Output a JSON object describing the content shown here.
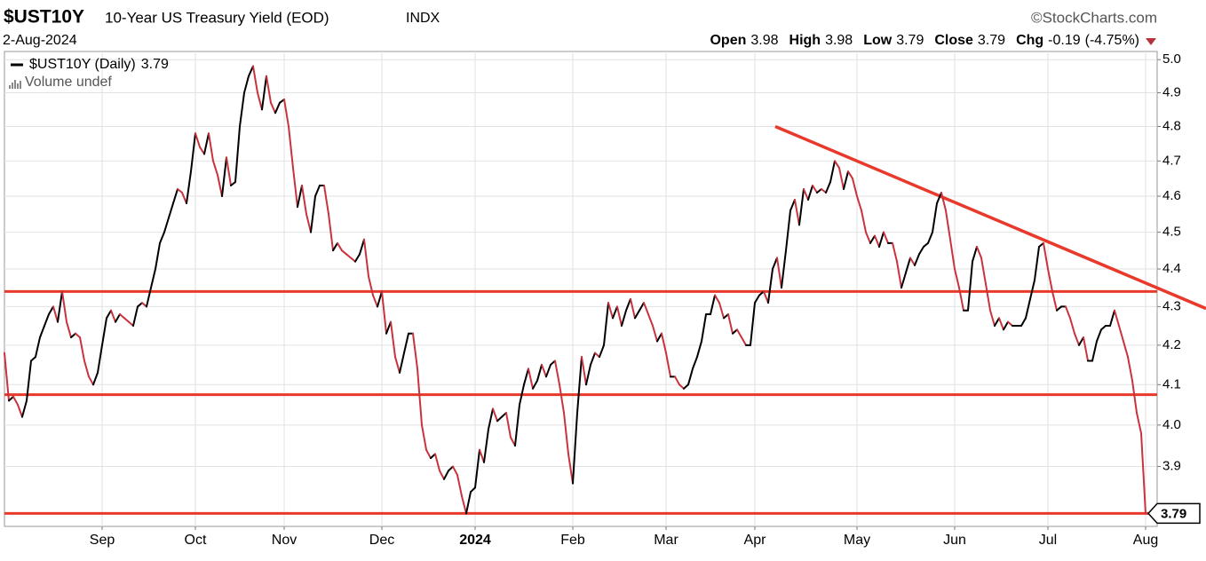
{
  "chart_data": {
    "type": "line",
    "title": "$UST10Y",
    "subtitle": "10-Year US Treasury Yield (EOD)",
    "exchange": "INDX",
    "source": "©StockCharts.com",
    "date": "2-Aug-2024",
    "stats": [
      {
        "label": "Open",
        "value": 3.98
      },
      {
        "label": "High",
        "value": 3.98
      },
      {
        "label": "Low",
        "value": 3.79
      },
      {
        "label": "Close",
        "value": 3.79
      },
      {
        "label": "Chg",
        "value": -0.19,
        "percent_label": "(-4.75%)"
      }
    ],
    "volume_label": "Volume undef",
    "categories": [
      null,
      null,
      null,
      null,
      null,
      null,
      null,
      null,
      null,
      null,
      null,
      null,
      null,
      null,
      null,
      null,
      null,
      null,
      null,
      null,
      null,
      null,
      "Sep",
      null,
      null,
      null,
      null,
      null,
      null,
      null,
      null,
      null,
      null,
      null,
      null,
      null,
      null,
      null,
      null,
      null,
      null,
      null,
      null,
      "Oct",
      null,
      null,
      null,
      null,
      null,
      null,
      null,
      null,
      null,
      null,
      null,
      null,
      null,
      null,
      null,
      null,
      null,
      null,
      null,
      "Nov",
      null,
      null,
      null,
      null,
      null,
      null,
      null,
      null,
      null,
      null,
      null,
      null,
      null,
      null,
      null,
      null,
      null,
      null,
      null,
      null,
      null,
      "Dec",
      null,
      null,
      null,
      null,
      null,
      null,
      null,
      null,
      null,
      null,
      null,
      null,
      null,
      null,
      null,
      null,
      null,
      null,
      null,
      null,
      "2024",
      null,
      null,
      null,
      null,
      null,
      null,
      null,
      null,
      null,
      null,
      null,
      null,
      null,
      null,
      null,
      null,
      null,
      null,
      null,
      null,
      null,
      "Feb",
      null,
      null,
      null,
      null,
      null,
      null,
      null,
      null,
      null,
      null,
      null,
      null,
      null,
      null,
      null,
      null,
      null,
      null,
      null,
      null,
      "Mar",
      null,
      null,
      null,
      null,
      null,
      null,
      null,
      null,
      null,
      null,
      null,
      null,
      null,
      null,
      null,
      null,
      null,
      null,
      null,
      "Apr",
      null,
      null,
      null,
      null,
      null,
      null,
      null,
      null,
      null,
      null,
      null,
      null,
      null,
      null,
      null,
      null,
      null,
      null,
      null,
      null,
      null,
      null,
      "May",
      null,
      null,
      null,
      null,
      null,
      null,
      null,
      null,
      null,
      null,
      null,
      null,
      null,
      null,
      null,
      null,
      null,
      null,
      null,
      null,
      null,
      "Jun",
      null,
      null,
      null,
      null,
      null,
      null,
      null,
      null,
      null,
      null,
      null,
      null,
      null,
      null,
      null,
      null,
      null,
      null,
      null,
      null,
      "Jul",
      null,
      null,
      null,
      null,
      null,
      null,
      null,
      null,
      null,
      null,
      null,
      null,
      null,
      null,
      null,
      null,
      null,
      null,
      null,
      null,
      null,
      "Aug"
    ],
    "series": [
      {
        "name": "$UST10Y (Daily)",
        "up_color": "#000000",
        "down_color": "#c9333d",
        "values": [
          4.18,
          4.06,
          4.07,
          4.05,
          4.02,
          4.06,
          4.16,
          4.17,
          4.22,
          4.25,
          4.28,
          4.3,
          4.26,
          4.34,
          4.26,
          4.22,
          4.23,
          4.22,
          4.16,
          4.12,
          4.1,
          4.13,
          4.2,
          4.27,
          4.29,
          4.26,
          4.28,
          4.27,
          4.26,
          4.25,
          4.3,
          4.31,
          4.3,
          4.35,
          4.4,
          4.47,
          4.5,
          4.54,
          4.58,
          4.62,
          4.61,
          4.58,
          4.67,
          4.78,
          4.74,
          4.72,
          4.78,
          4.7,
          4.66,
          4.6,
          4.71,
          4.63,
          4.64,
          4.8,
          4.9,
          4.95,
          4.98,
          4.9,
          4.85,
          4.95,
          4.87,
          4.84,
          4.87,
          4.88,
          4.8,
          4.68,
          4.57,
          4.63,
          4.55,
          4.5,
          4.6,
          4.63,
          4.63,
          4.55,
          4.45,
          4.47,
          4.45,
          4.44,
          4.43,
          4.42,
          4.44,
          4.48,
          4.38,
          4.33,
          4.3,
          4.34,
          4.23,
          4.26,
          4.17,
          4.13,
          4.18,
          4.23,
          4.23,
          4.14,
          4.0,
          3.94,
          3.92,
          3.93,
          3.89,
          3.87,
          3.89,
          3.9,
          3.88,
          3.83,
          3.79,
          3.84,
          3.85,
          3.94,
          3.91,
          3.99,
          4.04,
          4.01,
          4.02,
          4.03,
          3.97,
          3.95,
          4.05,
          4.1,
          4.14,
          4.09,
          4.11,
          4.15,
          4.12,
          4.15,
          4.16,
          4.1,
          4.03,
          3.93,
          3.86,
          4.03,
          4.17,
          4.1,
          4.15,
          4.18,
          4.17,
          4.2,
          4.31,
          4.27,
          4.3,
          4.25,
          4.29,
          4.32,
          4.27,
          4.29,
          4.31,
          4.28,
          4.25,
          4.21,
          4.23,
          4.18,
          4.12,
          4.12,
          4.1,
          4.09,
          4.1,
          4.14,
          4.17,
          4.21,
          4.28,
          4.28,
          4.33,
          4.31,
          4.27,
          4.28,
          4.23,
          4.24,
          4.22,
          4.2,
          4.2,
          4.31,
          4.33,
          4.34,
          4.31,
          4.4,
          4.43,
          4.35,
          4.45,
          4.56,
          4.59,
          4.52,
          4.62,
          4.59,
          4.63,
          4.61,
          4.62,
          4.61,
          4.64,
          4.7,
          4.68,
          4.62,
          4.67,
          4.65,
          4.6,
          4.56,
          4.5,
          4.47,
          4.49,
          4.46,
          4.5,
          4.47,
          4.47,
          4.42,
          4.35,
          4.39,
          4.43,
          4.41,
          4.44,
          4.46,
          4.47,
          4.5,
          4.58,
          4.61,
          4.56,
          4.48,
          4.4,
          4.35,
          4.29,
          4.29,
          4.42,
          4.46,
          4.43,
          4.36,
          4.29,
          4.25,
          4.27,
          4.24,
          4.26,
          4.25,
          4.25,
          4.25,
          4.27,
          4.32,
          4.37,
          4.46,
          4.47,
          4.4,
          4.34,
          4.29,
          4.3,
          4.3,
          4.27,
          4.23,
          4.2,
          4.22,
          4.16,
          4.16,
          4.21,
          4.24,
          4.25,
          4.25,
          4.29,
          4.25,
          4.21,
          4.17,
          4.11,
          4.03,
          3.98,
          3.79
        ]
      }
    ],
    "ylim": [
      3.76,
      5.025
    ],
    "log_scale": true,
    "yticks": [
      3.9,
      {
        "value": 4,
        "label": "4.0"
      },
      4.1,
      4.2,
      4.3,
      4.4,
      4.5,
      4.6,
      4.7,
      4.8,
      4.9,
      {
        "value": 5,
        "label": "5.0"
      }
    ],
    "grid": true,
    "annotations": {
      "color": "#e8392b",
      "levels": [
        4.34,
        4.075,
        3.79
      ],
      "trend": {
        "x": [
          173.6,
          270.6
        ],
        "y": [
          4.8,
          4.295
        ]
      }
    }
  }
}
